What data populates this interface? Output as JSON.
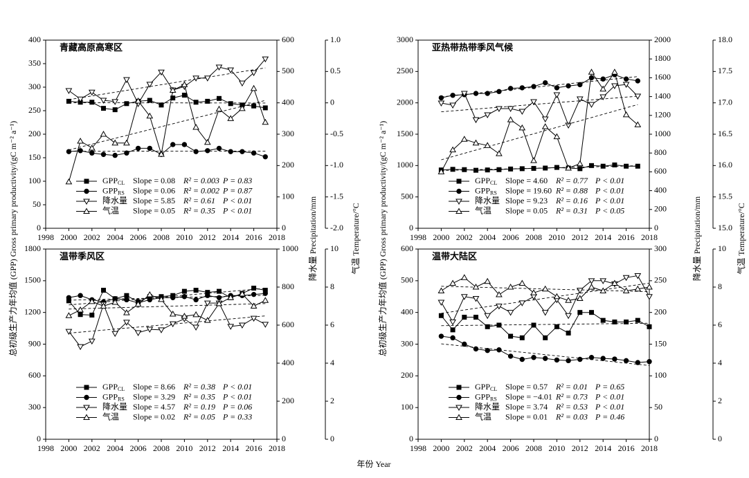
{
  "labels": {
    "y": "总初级生产力年均值 (GPP) Gross primary productivity/(gC m⁻² a⁻¹)",
    "y2": "降水量 Precipitation/mm",
    "y3": "气温 Temperature/°C",
    "x": "年份 Year"
  },
  "chart_data": [
    {
      "type": "line",
      "title": "青藏高原高寒区",
      "x": [
        2000,
        2001,
        2002,
        2003,
        2004,
        2005,
        2006,
        2007,
        2008,
        2009,
        2010,
        2011,
        2012,
        2013,
        2014,
        2015,
        2016,
        2017
      ],
      "xlim": [
        1998,
        2018
      ],
      "xticks": [
        1998,
        2000,
        2002,
        2004,
        2006,
        2008,
        2010,
        2012,
        2014,
        2016,
        2018
      ],
      "ylim": [
        0,
        400
      ],
      "yticks": [
        0,
        50,
        100,
        150,
        200,
        250,
        300,
        350,
        400
      ],
      "y2lim": [
        0,
        600
      ],
      "y2ticks": [
        0,
        100,
        200,
        300,
        400,
        500,
        600
      ],
      "y3lim": [
        -2,
        1
      ],
      "y3ticks": [
        {
          "value": -2,
          "label": "-2.0"
        },
        -1.5,
        {
          "value": -1,
          "label": "-1.0"
        },
        -0.5,
        0,
        0.5,
        {
          "value": 1,
          "label": "1.0"
        }
      ],
      "series": [
        {
          "name": "GPP",
          "sub": "CL",
          "marker": "square",
          "color": "#000000",
          "axis": "y",
          "slope": "Slope = 0.08",
          "r2": "R² = 0.003",
          "p": "P = 0.83",
          "values": [
            270,
            268,
            268,
            255,
            252,
            265,
            270,
            272,
            262,
            277,
            283,
            268,
            270,
            276,
            265,
            262,
            260,
            256
          ]
        },
        {
          "name": "GPP",
          "sub": "RS",
          "marker": "circle",
          "color": "#000000",
          "axis": "y",
          "slope": "Slope = 0.06",
          "r2": "R² = 0.002",
          "p": "P = 0.87",
          "values": [
            163,
            165,
            160,
            157,
            155,
            160,
            170,
            170,
            157,
            178,
            178,
            163,
            165,
            170,
            163,
            163,
            160,
            152
          ]
        },
        {
          "name": "降水量",
          "marker": "triangle-down",
          "color": "#000000",
          "axis": "y2",
          "slope": "Slope = 5.85",
          "r2": "R² = 0.61",
          "p": "P < 0.01",
          "values": [
            439,
            412,
            434,
            408,
            404,
            474,
            397,
            459,
            498,
            441,
            452,
            479,
            479,
            514,
            505,
            463,
            496,
            540
          ]
        },
        {
          "name": "气温",
          "marker": "triangle-up",
          "color": "#000000",
          "axis": "y3",
          "slope": "Slope = 0.05",
          "r2": "R² = 0.35",
          "p": "P < 0.01",
          "values": [
            -1.26,
            -0.61,
            -0.72,
            -0.5,
            -0.64,
            -0.64,
            0.03,
            -0.21,
            -0.82,
            0.2,
            0.29,
            -0.39,
            -0.63,
            -0.1,
            -0.25,
            -0.09,
            0.23,
            -0.31
          ]
        }
      ]
    },
    {
      "type": "line",
      "title": "亚热带热带季风气候",
      "x": [
        2000,
        2001,
        2002,
        2003,
        2004,
        2005,
        2006,
        2007,
        2008,
        2009,
        2010,
        2011,
        2012,
        2013,
        2014,
        2015,
        2016,
        2017
      ],
      "xlim": [
        1998,
        2018
      ],
      "xticks": [
        1998,
        2000,
        2002,
        2004,
        2006,
        2008,
        2010,
        2012,
        2014,
        2016,
        2018
      ],
      "ylim": [
        0,
        3000
      ],
      "yticks": [
        0,
        500,
        1000,
        1500,
        2000,
        2500,
        3000
      ],
      "y2lim": [
        0,
        2000
      ],
      "y2ticks": [
        0,
        200,
        400,
        600,
        800,
        1000,
        1200,
        1400,
        1600,
        1800,
        2000
      ],
      "y3lim": [
        15,
        18
      ],
      "y3ticks": [
        {
          "value": 15,
          "label": "15.0"
        },
        15.5,
        {
          "value": 16,
          "label": "16.0"
        },
        16.5,
        {
          "value": 17,
          "label": "17.0"
        },
        17.5,
        {
          "value": 18,
          "label": "18.0"
        }
      ],
      "series": [
        {
          "name": "GPP",
          "sub": "CL",
          "marker": "square",
          "color": "#000000",
          "axis": "y",
          "slope": "Slope = 4.60",
          "r2": "R² = 0.77",
          "p": "P < 0.01",
          "values": [
            930,
            940,
            935,
            925,
            930,
            935,
            945,
            950,
            955,
            960,
            970,
            960,
            950,
            1000,
            990,
            1010,
            990,
            990
          ]
        },
        {
          "name": "GPP",
          "sub": "RS",
          "marker": "circle",
          "color": "#000000",
          "axis": "y",
          "slope": "Slope = 19.60",
          "r2": "R² = 0.88",
          "p": "P < 0.01",
          "values": [
            2080,
            2120,
            2130,
            2150,
            2150,
            2180,
            2230,
            2240,
            2260,
            2320,
            2240,
            2270,
            2290,
            2400,
            2380,
            2450,
            2380,
            2350
          ]
        },
        {
          "name": "降水量",
          "marker": "triangle-down",
          "color": "#000000",
          "axis": "y2",
          "slope": "Slope = 9.23",
          "r2": "R² = 0.16",
          "p": "P < 0.01",
          "values": [
            1331,
            1309,
            1434,
            1154,
            1206,
            1272,
            1272,
            1243,
            1346,
            1162,
            1419,
            1096,
            1375,
            1316,
            1397,
            1515,
            1529,
            1404
          ]
        },
        {
          "name": "气温",
          "marker": "triangle-up",
          "color": "#000000",
          "axis": "y3",
          "slope": "Slope = 0.05",
          "r2": "R² = 0.31",
          "p": "P < 0.05",
          "values": [
            15.9,
            16.25,
            16.42,
            16.36,
            16.32,
            16.19,
            16.73,
            16.6,
            16.08,
            16.62,
            16.46,
            15.96,
            16.03,
            17.49,
            17.22,
            17.49,
            16.81,
            16.65
          ]
        }
      ]
    },
    {
      "type": "line",
      "title": "温带季风区",
      "x": [
        2000,
        2001,
        2002,
        2003,
        2004,
        2005,
        2006,
        2007,
        2008,
        2009,
        2010,
        2011,
        2012,
        2013,
        2014,
        2015,
        2016,
        2017
      ],
      "xlim": [
        1998,
        2018
      ],
      "xticks": [
        1998,
        2000,
        2002,
        2004,
        2006,
        2008,
        2010,
        2012,
        2014,
        2016,
        2018
      ],
      "ylim": [
        0,
        1800
      ],
      "yticks": [
        0,
        300,
        600,
        900,
        1200,
        1500,
        1800
      ],
      "y2lim": [
        0,
        1000
      ],
      "y2ticks": [
        0,
        200,
        400,
        600,
        800,
        1000
      ],
      "y3lim": [
        0,
        10
      ],
      "y3ticks": [
        0,
        2,
        4,
        6,
        8,
        10
      ],
      "series": [
        {
          "name": "GPP",
          "sub": "CL",
          "marker": "square",
          "color": "#000000",
          "axis": "y",
          "slope": "Slope = 8.66",
          "r2": "R² = 0.38",
          "p": "P < 0.01",
          "values": [
            1310,
            1180,
            1175,
            1410,
            1330,
            1360,
            1300,
            1350,
            1350,
            1360,
            1400,
            1410,
            1390,
            1400,
            1340,
            1380,
            1430,
            1410
          ]
        },
        {
          "name": "GPP",
          "sub": "RS",
          "marker": "circle",
          "color": "#000000",
          "axis": "y",
          "slope": "Slope = 3.29",
          "r2": "R² = 0.35",
          "p": "P < 0.01",
          "values": [
            1340,
            1360,
            1320,
            1300,
            1330,
            1320,
            1290,
            1320,
            1340,
            1340,
            1350,
            1320,
            1360,
            1340,
            1360,
            1360,
            1370,
            1380
          ]
        },
        {
          "name": "降水量",
          "marker": "triangle-down",
          "color": "#000000",
          "axis": "y2",
          "slope": "Slope = 4.57",
          "r2": "R² = 0.19",
          "p": "P = 0.06",
          "values": [
            567,
            487,
            516,
            709,
            556,
            615,
            560,
            578,
            575,
            607,
            633,
            589,
            716,
            716,
            593,
            600,
            636,
            604
          ]
        },
        {
          "name": "气温",
          "marker": "triangle-up",
          "color": "#000000",
          "axis": "y3",
          "slope": "Slope = 0.02",
          "r2": "R² = 0.05",
          "p": "P = 0.33",
          "values": [
            6.5,
            6.8,
            7.24,
            7.0,
            7.2,
            6.65,
            7.1,
            7.6,
            7.35,
            6.58,
            6.47,
            6.55,
            6.25,
            7.13,
            7.45,
            7.64,
            7.0,
            7.3
          ]
        }
      ]
    },
    {
      "type": "line",
      "title": "温带大陆区",
      "x": [
        2000,
        2001,
        2002,
        2003,
        2004,
        2005,
        2006,
        2007,
        2008,
        2009,
        2010,
        2011,
        2012,
        2013,
        2014,
        2015,
        2016,
        2017,
        2018
      ],
      "xlim": [
        1998,
        2018
      ],
      "xticks": [
        1998,
        2000,
        2002,
        2004,
        2006,
        2008,
        2010,
        2012,
        2014,
        2016,
        2018
      ],
      "ylim": [
        0,
        600
      ],
      "yticks": [
        0,
        100,
        200,
        300,
        400,
        500,
        600
      ],
      "y2lim": [
        0,
        300
      ],
      "y2ticks": [
        0,
        50,
        100,
        150,
        200,
        250,
        300
      ],
      "y3lim": [
        0,
        10
      ],
      "y3ticks": [
        0,
        2,
        4,
        6,
        8,
        10
      ],
      "series": [
        {
          "name": "GPP",
          "sub": "CL",
          "marker": "square",
          "color": "#000000",
          "axis": "y",
          "slope": "Slope = 0.57",
          "r2": "R² = 0.01",
          "p": "P = 0.65",
          "values": [
            390,
            345,
            385,
            385,
            355,
            360,
            325,
            320,
            360,
            320,
            355,
            335,
            400,
            400,
            375,
            370,
            370,
            375,
            355
          ]
        },
        {
          "name": "GPP",
          "sub": "RS",
          "marker": "circle",
          "color": "#000000",
          "axis": "y",
          "slope": "Slope = −4.01",
          "r2": "R² = 0.73",
          "p": "P < 0.01",
          "values": [
            325,
            320,
            300,
            285,
            280,
            282,
            262,
            252,
            258,
            255,
            250,
            248,
            252,
            258,
            255,
            253,
            248,
            242,
            245
          ]
        },
        {
          "name": "降水量",
          "marker": "triangle-down",
          "color": "#000000",
          "axis": "y2",
          "slope": "Slope = 3.74",
          "r2": "R² = 0.53",
          "p": "P < 0.01",
          "values": [
            216,
            185,
            225,
            222,
            195,
            210,
            200,
            215,
            225,
            200,
            220,
            195,
            235,
            250,
            250,
            245,
            255,
            258,
            225
          ]
        },
        {
          "name": "气温",
          "marker": "triangle-up",
          "color": "#000000",
          "axis": "y3",
          "slope": "Slope = 0.01",
          "r2": "R² = 0.03",
          "p": "P = 0.46",
          "values": [
            7.8,
            8.2,
            8.5,
            8.0,
            8.3,
            7.6,
            8.0,
            8.2,
            7.7,
            7.9,
            7.5,
            7.3,
            7.4,
            8.0,
            7.8,
            8.2,
            7.8,
            7.9,
            8.0
          ]
        }
      ]
    }
  ]
}
